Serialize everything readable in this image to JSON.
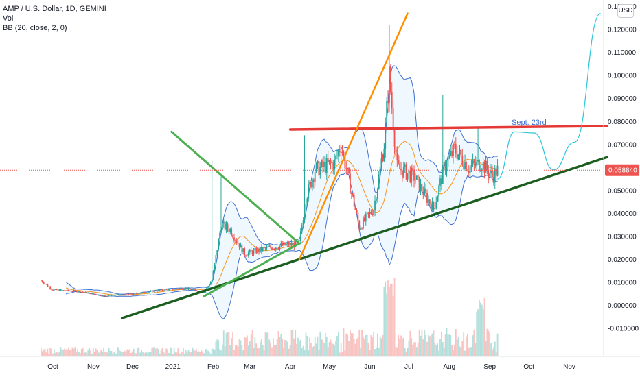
{
  "legend": {
    "symbol": "AMP / U.S. Dollar, 1D, GEMINI",
    "volume": "Vol",
    "bb": "BB (20, close, 2, 0)"
  },
  "currency_button": "USD",
  "annotation": "Sept. 23rd",
  "price_label": "0.058840",
  "colors": {
    "up": "#26a69a",
    "down": "#ef5350",
    "bb_band": "#3f6fd1",
    "bb_basis": "#f7931a",
    "support_line": "#1b5e20",
    "wedge_line": "#4caf50",
    "resistance_line": "#e53935",
    "trend_line_orange": "#ff8f00",
    "projection": "#26c6da",
    "annotation_text": "#3f6fd1",
    "price_label_bg": "#ef5350"
  },
  "chart_data": {
    "type": "candlestick",
    "title": "AMP / U.S. Dollar, 1D, GEMINI",
    "indicators": [
      "Vol",
      "BB (20, close, 2, 0)"
    ],
    "x_ticks": [
      "Oct",
      "Nov",
      "Dec",
      "2021",
      "Feb",
      "Mar",
      "Apr",
      "May",
      "Jun",
      "Jul",
      "Aug",
      "Sep",
      "Oct",
      "Nov"
    ],
    "y_ticks": [
      "0.130000",
      "0.120000",
      "0.110000",
      "0.100000",
      "0.090000",
      "0.080000",
      "0.070000",
      "0.060000",
      "0.050000",
      "0.040000",
      "0.030000",
      "0.020000",
      "0.010000",
      "0.000000",
      "-0.010000"
    ],
    "ylim": [
      -0.0145,
      0.134
    ],
    "last_price": 0.05884,
    "drawings": [
      {
        "name": "support trendline",
        "color": "green-dark",
        "from": [
          "2020-11-23",
          -0.0055
        ],
        "to": [
          "2021-11-30",
          0.0645
        ]
      },
      {
        "name": "falling wedge line",
        "from": [
          "2020-12-31",
          0.0755
        ],
        "to": [
          "2021-04-08",
          0.027
        ]
      },
      {
        "name": "rising wedge line",
        "from": [
          "2021-01-25",
          0.004
        ],
        "to": [
          "2021-04-08",
          0.027
        ]
      },
      {
        "name": "resistance",
        "from": [
          "2021-04-01",
          0.0765
        ],
        "to": [
          "2021-11-30",
          0.078
        ]
      },
      {
        "name": "parabolic trendline",
        "from": [
          "2021-04-08",
          0.02
        ],
        "to": [
          "2021-06-30",
          0.127
        ]
      },
      {
        "name": "projection path",
        "points": [
          [
            "2021-09-07",
            0.055
          ],
          [
            "2021-09-20",
            0.0755
          ],
          [
            "2021-10-05",
            0.075
          ],
          [
            "2021-10-20",
            0.059
          ],
          [
            "2021-11-05",
            0.071
          ],
          [
            "2021-11-25",
            0.127
          ]
        ]
      }
    ],
    "price_path_monthly_approx": [
      {
        "x": "2020-09",
        "close": 0.01
      },
      {
        "x": "2020-10",
        "close": 0.006
      },
      {
        "x": "2020-11",
        "close": 0.004
      },
      {
        "x": "2020-12",
        "close": 0.006
      },
      {
        "x": "2021-01",
        "close": 0.005
      },
      {
        "x": "2021-02",
        "close": 0.035
      },
      {
        "x": "2021-03",
        "close": 0.025
      },
      {
        "x": "2021-04",
        "close": 0.027
      },
      {
        "x": "2021-05",
        "close": 0.06
      },
      {
        "x": "2021-06",
        "close": 0.1
      },
      {
        "x": "2021-07",
        "close": 0.055
      },
      {
        "x": "2021-08",
        "close": 0.065
      },
      {
        "x": "2021-09",
        "close": 0.0588
      }
    ]
  }
}
